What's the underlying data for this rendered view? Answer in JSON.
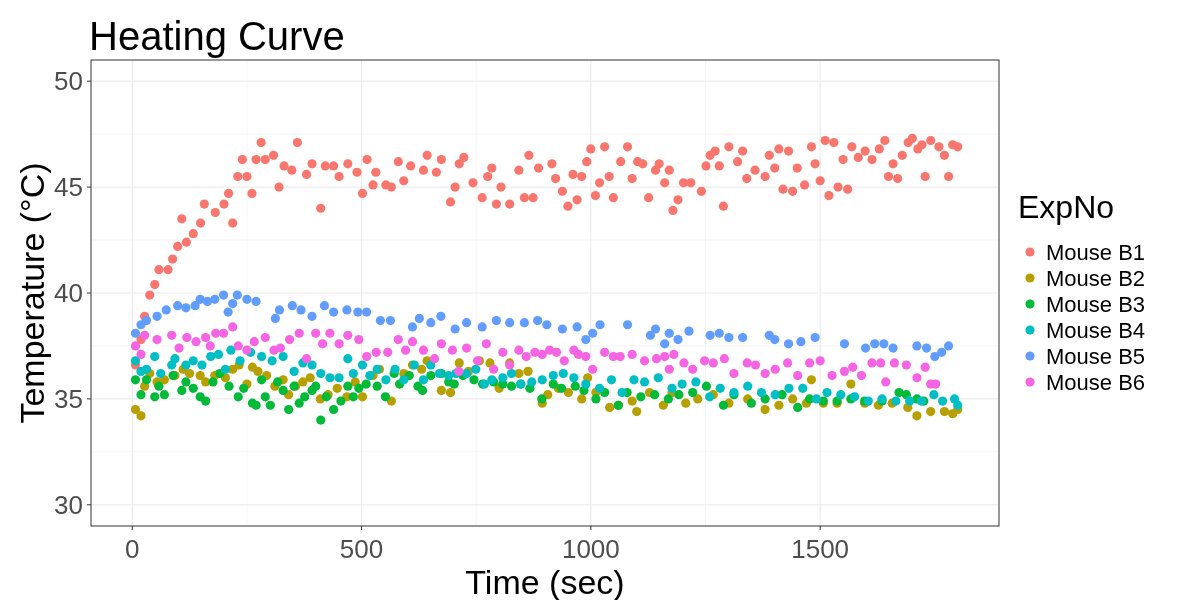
{
  "chart_data": {
    "type": "scatter",
    "title": "Heating Curve",
    "xlabel": "Time (sec)",
    "ylabel": "Temperature (°C)",
    "legend_title": "ExpNo",
    "xlim": [
      -90,
      1890
    ],
    "ylim": [
      29,
      51
    ],
    "xticks": [
      0,
      500,
      1000,
      1500
    ],
    "yticks": [
      30,
      35,
      40,
      45,
      50
    ],
    "grid": true,
    "legend": "right",
    "marker": "circle",
    "series": [
      {
        "name": "Mouse B1",
        "color": "#F8766D",
        "x": [
          7,
          19,
          27,
          38,
          49,
          58,
          78,
          88,
          99,
          108,
          118,
          133,
          149,
          157,
          181,
          200,
          210,
          219,
          230,
          240,
          250,
          261,
          270,
          281,
          290,
          308,
          320,
          331,
          348,
          360,
          380,
          392,
          411,
          421,
          439,
          451,
          470,
          490,
          502,
          512,
          525,
          531,
          553,
          565,
          580,
          592,
          607,
          635,
          643,
          663,
          674,
          694,
          704,
          713,
          723,
          743,
          763,
          775,
          784,
          794,
          804,
          823,
          843,
          855,
          865,
          874,
          886,
          915,
          923,
          938,
          950,
          961,
          970,
          980,
          991,
          1000,
          1010,
          1019,
          1030,
          1040,
          1049,
          1065,
          1080,
          1090,
          1102,
          1113,
          1126,
          1141,
          1149,
          1161,
          1171,
          1179,
          1190,
          1202,
          1218,
          1241,
          1251,
          1260,
          1271,
          1280,
          1289,
          1301,
          1320,
          1331,
          1340,
          1358,
          1380,
          1389,
          1401,
          1410,
          1419,
          1431,
          1440,
          1450,
          1466,
          1481,
          1489,
          1500,
          1511,
          1519,
          1530,
          1539,
          1550,
          1560,
          1569,
          1583,
          1598,
          1613,
          1629,
          1641,
          1649,
          1659,
          1669,
          1679,
          1692,
          1701,
          1713,
          1722,
          1729,
          1741,
          1759,
          1771,
          1780,
          1789,
          1800
        ],
        "values": [
          36.6,
          37.8,
          38.9,
          39.9,
          40.4,
          41.1,
          41.1,
          41.6,
          42.2,
          43.5,
          42.4,
          42.8,
          43.3,
          44.2,
          43.8,
          44.2,
          44.7,
          43.3,
          45.5,
          46.3,
          45.5,
          44.7,
          46.3,
          47.1,
          46.3,
          46.5,
          45.0,
          46.0,
          45.8,
          47.1,
          45.6,
          46.1,
          44.0,
          46.0,
          46.0,
          45.5,
          46.1,
          45.7,
          44.7,
          46.3,
          45.1,
          45.7,
          45.1,
          45.0,
          46.2,
          45.3,
          46.0,
          45.8,
          46.5,
          45.7,
          46.3,
          44.3,
          45.0,
          46.1,
          46.4,
          45.2,
          44.5,
          45.5,
          45.9,
          44.2,
          45.0,
          44.2,
          45.8,
          44.5,
          46.5,
          44.5,
          45.9,
          46.1,
          45.4,
          44.8,
          44.1,
          45.6,
          44.4,
          45.5,
          46.2,
          46.8,
          44.6,
          45.2,
          46.9,
          45.5,
          44.5,
          46.2,
          46.9,
          45.4,
          46.2,
          46.1,
          44.5,
          45.8,
          46.1,
          45.2,
          45.8,
          43.9,
          44.4,
          45.2,
          45.2,
          44.8,
          46.0,
          46.5,
          46.7,
          46.0,
          44.1,
          46.9,
          46.2,
          46.7,
          45.4,
          45.8,
          45.5,
          46.5,
          45.9,
          46.8,
          44.9,
          46.7,
          44.8,
          45.9,
          45.1,
          46.9,
          46.1,
          45.3,
          47.2,
          44.6,
          47.1,
          45.0,
          46.3,
          44.9,
          46.9,
          46.4,
          46.7,
          46.3,
          46.8,
          47.2,
          45.5,
          46.1,
          45.4,
          46.5,
          47.1,
          47.3,
          46.8,
          47.0,
          45.5,
          47.2,
          46.9,
          46.5,
          45.5,
          47.0,
          46.9
        ]
      },
      {
        "name": "Mouse B2",
        "color": "#B79F00",
        "x": [
          7,
          19,
          27,
          38,
          54,
          70,
          93,
          111,
          125,
          148,
          160,
          180,
          203,
          219,
          233,
          250,
          262,
          274,
          293,
          311,
          329,
          341,
          356,
          372,
          388,
          410,
          427,
          447,
          468,
          486,
          502,
          525,
          539,
          565,
          592,
          611,
          631,
          643,
          674,
          694,
          713,
          733,
          757,
          780,
          800,
          823,
          843,
          863,
          894,
          906,
          929,
          951,
          980,
          993,
          1011,
          1041,
          1060,
          1090,
          1100,
          1128,
          1158,
          1177,
          1207,
          1233,
          1267,
          1301,
          1342,
          1380,
          1410,
          1440,
          1470,
          1481,
          1507,
          1537,
          1567,
          1597,
          1627,
          1657,
          1691,
          1711,
          1741,
          1771,
          1789,
          1800
        ],
        "values": [
          34.5,
          34.2,
          35.6,
          36.2,
          35.8,
          35.9,
          36.1,
          36.4,
          36.2,
          36.1,
          35.8,
          36.1,
          36.0,
          36.4,
          36.6,
          35.7,
          36.5,
          36.3,
          36.1,
          35.6,
          35.9,
          35.2,
          35.6,
          35.8,
          36.0,
          35.0,
          35.2,
          35.5,
          35.1,
          35.8,
          35.1,
          36.1,
          36.4,
          34.9,
          36.2,
          36.6,
          36.4,
          36.8,
          35.4,
          35.3,
          36.7,
          36.3,
          36.8,
          36.7,
          35.5,
          36.7,
          36.2,
          36.3,
          34.8,
          35.2,
          35.5,
          35.3,
          35.0,
          36.0,
          35.3,
          34.6,
          34.7,
          34.9,
          34.4,
          35.3,
          34.7,
          35.3,
          34.8,
          35.0,
          35.2,
          34.8,
          35.0,
          34.5,
          34.7,
          35.0,
          34.8,
          35.9,
          34.8,
          34.8,
          35.7,
          34.8,
          34.7,
          34.8,
          34.6,
          34.2,
          34.4,
          34.4,
          34.3,
          34.5
        ]
      },
      {
        "name": "Mouse B3",
        "color": "#00BA38",
        "x": [
          7,
          19,
          31,
          49,
          58,
          70,
          89,
          108,
          117,
          133,
          148,
          160,
          176,
          191,
          211,
          231,
          243,
          262,
          270,
          282,
          290,
          301,
          317,
          329,
          341,
          353,
          364,
          376,
          392,
          400,
          411,
          423,
          439,
          455,
          470,
          482,
          494,
          510,
          534,
          552,
          571,
          583,
          604,
          623,
          633,
          651,
          674,
          690,
          702,
          721,
          745,
          764,
          788,
          808,
          827,
          847,
          867,
          893,
          918,
          936,
          966,
          985,
          1011,
          1030,
          1060,
          1079,
          1109,
          1139,
          1169,
          1192,
          1222,
          1252,
          1289,
          1312,
          1350,
          1380,
          1417,
          1451,
          1477,
          1507,
          1537,
          1567,
          1597,
          1635,
          1672,
          1688,
          1711,
          1726
        ],
        "values": [
          35.9,
          35.2,
          35.9,
          35.1,
          35.6,
          35.2,
          36.1,
          35.4,
          35.8,
          35.5,
          35.1,
          34.9,
          35.8,
          36.2,
          35.6,
          35.1,
          35.5,
          34.8,
          34.7,
          35.9,
          35.1,
          34.7,
          35.8,
          35.4,
          34.5,
          35.6,
          34.8,
          35.1,
          35.4,
          35.6,
          34.0,
          35.1,
          34.5,
          34.9,
          35.6,
          35.1,
          35.5,
          35.7,
          35.6,
          35.1,
          36.2,
          35.7,
          36.1,
          35.6,
          35.4,
          36.1,
          36.2,
          35.8,
          35.7,
          36.1,
          35.9,
          35.7,
          35.8,
          35.7,
          35.6,
          35.7,
          35.5,
          35.0,
          35.7,
          35.5,
          35.6,
          35.4,
          35.0,
          35.3,
          34.7,
          35.3,
          35.1,
          35.2,
          35.0,
          35.2,
          35.3,
          35.6,
          34.7,
          35.2,
          34.8,
          35.0,
          35.2,
          34.6,
          35.0,
          34.9,
          34.9,
          35.0,
          34.9,
          34.9,
          35.3,
          35.2,
          35.0,
          34.9
        ]
      },
      {
        "name": "Mouse B4",
        "color": "#00BFC4",
        "x": [
          7,
          19,
          31,
          49,
          62,
          86,
          93,
          117,
          133,
          152,
          171,
          188,
          203,
          215,
          235,
          258,
          282,
          305,
          329,
          353,
          372,
          392,
          411,
          431,
          451,
          470,
          482,
          502,
          518,
          534,
          553,
          573,
          592,
          615,
          635,
          651,
          670,
          690,
          706,
          729,
          749,
          768,
          784,
          808,
          827,
          847,
          871,
          894,
          918,
          940,
          963,
          989,
          1019,
          1045,
          1068,
          1094,
          1117,
          1147,
          1177,
          1199,
          1229,
          1259,
          1282,
          1312,
          1342,
          1372,
          1402,
          1432,
          1462,
          1492,
          1515,
          1545,
          1575,
          1605,
          1635,
          1665,
          1695,
          1721,
          1748,
          1767,
          1793,
          1800
        ],
        "values": [
          36.8,
          36.3,
          36.4,
          37.0,
          36.2,
          36.6,
          36.9,
          36.6,
          36.8,
          36.6,
          37.0,
          37.1,
          36.4,
          37.3,
          36.8,
          37.2,
          37.0,
          36.8,
          37.0,
          36.3,
          36.7,
          36.6,
          36.2,
          36.0,
          36.0,
          36.9,
          36.2,
          36.6,
          36.1,
          36.4,
          35.9,
          36.4,
          35.9,
          36.6,
          35.9,
          36.6,
          36.2,
          36.1,
          36.2,
          36.2,
          36.4,
          35.7,
          35.9,
          36.0,
          36.2,
          35.7,
          35.8,
          35.9,
          36.1,
          36.2,
          36.0,
          35.7,
          35.5,
          35.9,
          35.3,
          35.9,
          35.8,
          36.0,
          35.5,
          35.7,
          35.8,
          35.1,
          35.5,
          35.3,
          35.6,
          35.3,
          35.2,
          35.5,
          35.5,
          35.0,
          35.3,
          35.2,
          35.1,
          34.9,
          35.0,
          34.9,
          34.9,
          34.9,
          35.2,
          34.9,
          35.0,
          34.7
        ]
      },
      {
        "name": "Mouse B5",
        "color": "#619CFF",
        "x": [
          7,
          19,
          31,
          54,
          74,
          99,
          117,
          137,
          148,
          164,
          180,
          199,
          209,
          219,
          229,
          250,
          270,
          312,
          321,
          349,
          368,
          392,
          419,
          439,
          468,
          492,
          511,
          541,
          563,
          611,
          626,
          651,
          673,
          704,
          729,
          763,
          794,
          823,
          855,
          884,
          904,
          938,
          970,
          989,
          1004,
          1020,
          1080,
          1130,
          1141,
          1161,
          1171,
          1190,
          1214,
          1260,
          1280,
          1301,
          1331,
          1389,
          1401,
          1431,
          1458,
          1489,
          1553,
          1599,
          1619,
          1639,
          1659,
          1711,
          1732,
          1750,
          1765,
          1780
        ],
        "values": [
          38.1,
          38.5,
          38.7,
          38.9,
          39.2,
          39.4,
          39.3,
          39.4,
          39.7,
          39.6,
          39.7,
          39.9,
          39.1,
          39.5,
          39.9,
          39.7,
          39.6,
          38.8,
          39.2,
          39.4,
          39.2,
          38.9,
          39.4,
          39.1,
          39.2,
          39.1,
          39.1,
          38.7,
          38.7,
          38.4,
          38.8,
          38.6,
          38.9,
          38.3,
          38.6,
          38.4,
          38.7,
          38.6,
          38.6,
          38.7,
          38.5,
          38.3,
          38.4,
          37.8,
          38.1,
          38.5,
          38.5,
          38.0,
          38.3,
          37.6,
          38.1,
          37.8,
          38.2,
          38.0,
          38.1,
          37.9,
          37.9,
          38.0,
          37.8,
          37.6,
          37.7,
          37.9,
          37.6,
          37.4,
          37.6,
          37.6,
          37.4,
          37.5,
          37.4,
          37.0,
          37.2,
          37.5
        ]
      },
      {
        "name": "Mouse B6",
        "color": "#F564E3",
        "x": [
          7,
          19,
          27,
          54,
          86,
          102,
          119,
          139,
          160,
          170,
          182,
          199,
          219,
          231,
          250,
          266,
          290,
          309,
          323,
          343,
          364,
          380,
          400,
          415,
          431,
          451,
          470,
          494,
          511,
          532,
          557,
          580,
          596,
          611,
          635,
          659,
          674,
          698,
          712,
          729,
          753,
          772,
          788,
          808,
          823,
          843,
          859,
          878,
          894,
          910,
          925,
          942,
          963,
          973,
          989,
          1004,
          1030,
          1049,
          1064,
          1090,
          1117,
          1143,
          1161,
          1171,
          1181,
          1203,
          1222,
          1248,
          1267,
          1291,
          1312,
          1341,
          1359,
          1380,
          1402,
          1429,
          1451,
          1477,
          1500,
          1526,
          1553,
          1571,
          1590,
          1613,
          1632,
          1643,
          1662,
          1688,
          1711,
          1729,
          1741,
          1752
        ],
        "values": [
          37.5,
          37.1,
          38.0,
          37.8,
          38.0,
          37.4,
          37.9,
          37.7,
          37.9,
          37.5,
          38.1,
          38.1,
          38.4,
          37.5,
          37.3,
          37.7,
          37.9,
          37.3,
          37.4,
          37.8,
          38.1,
          36.9,
          38.1,
          37.6,
          38.1,
          37.6,
          38.0,
          37.8,
          37.0,
          37.2,
          37.2,
          37.8,
          37.3,
          37.7,
          37.3,
          36.9,
          37.6,
          37.3,
          36.3,
          37.4,
          36.8,
          37.6,
          36.4,
          37.2,
          36.6,
          37.3,
          37.0,
          37.2,
          37.1,
          37.3,
          37.2,
          36.8,
          37.3,
          37.1,
          37.0,
          36.4,
          37.2,
          37.0,
          37.0,
          37.1,
          36.8,
          36.9,
          37.0,
          36.4,
          37.1,
          36.7,
          36.4,
          36.8,
          36.7,
          36.9,
          36.2,
          36.7,
          36.6,
          36.2,
          36.4,
          36.7,
          36.1,
          36.7,
          36.8,
          36.1,
          36.3,
          36.5,
          36.1,
          36.7,
          36.7,
          35.8,
          36.7,
          36.6,
          36.0,
          36.5,
          35.7,
          35.7
        ]
      }
    ]
  }
}
